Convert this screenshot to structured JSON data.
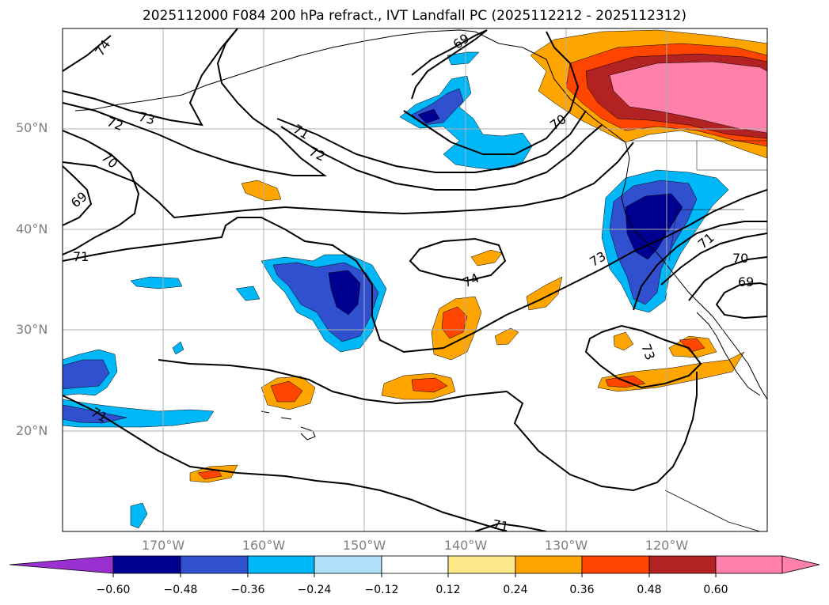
{
  "title": "2025112000 F084 200 hPa refract., IVT Landfall PC (2025112212 - 2025112312)",
  "map": {
    "lat_labels": [
      "50°N",
      "40°N",
      "30°N",
      "20°N"
    ],
    "lon_labels": [
      "170°W",
      "160°W",
      "150°W",
      "140°W",
      "130°W",
      "120°W"
    ],
    "contour_labels": [
      "74",
      "73",
      "72",
      "71",
      "70",
      "69",
      "69",
      "71",
      "72",
      "71",
      "70",
      "73",
      "74",
      "73",
      "71",
      "70",
      "69",
      "71",
      "71",
      "73"
    ]
  },
  "colorbar": {
    "ticks": [
      "−0.60",
      "−0.48",
      "−0.36",
      "−0.24",
      "−0.12",
      "0.12",
      "0.24",
      "0.36",
      "0.48",
      "0.60"
    ],
    "colors": {
      "under": "#9b30d0",
      "c1": "#000090",
      "c2": "#3050d0",
      "c3": "#00b8f8",
      "c4": "#b0e0f8",
      "c5": "#ffffff",
      "c6": "#fde88a",
      "c7": "#ffa500",
      "c8": "#ff4500",
      "c9": "#b22222",
      "over": "#ff80a8"
    }
  }
}
